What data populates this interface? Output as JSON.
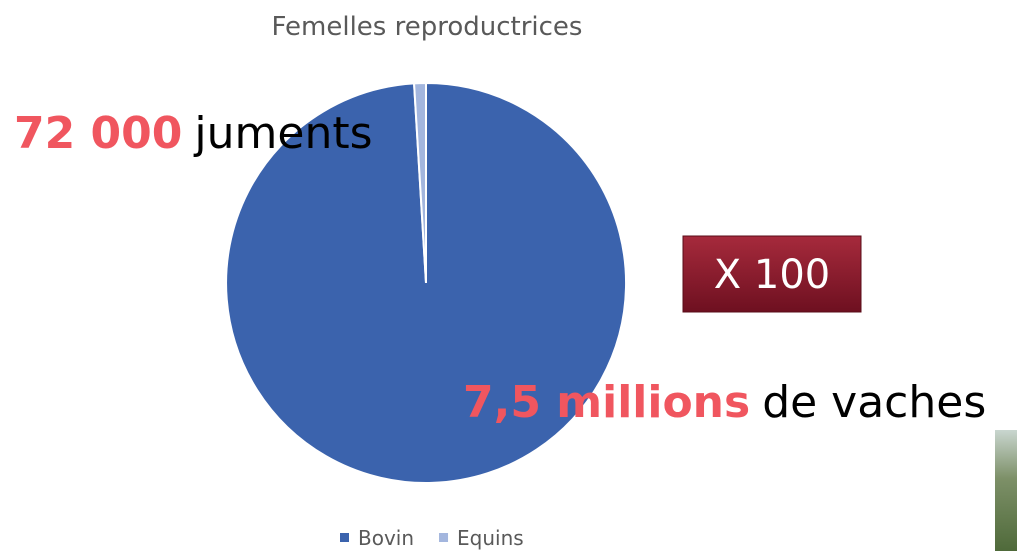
{
  "chart_data": {
    "type": "pie",
    "title": "Femelles reproductrices",
    "categories": [
      "Bovin",
      "Equins"
    ],
    "values": [
      7500000,
      72000
    ],
    "value_labels": [
      "7,5 millions",
      "72 000"
    ],
    "colors": [
      "#3b63ad",
      "#a3b6de"
    ],
    "annotations": [
      "de vaches",
      "juments",
      "X 100"
    ]
  }
}
